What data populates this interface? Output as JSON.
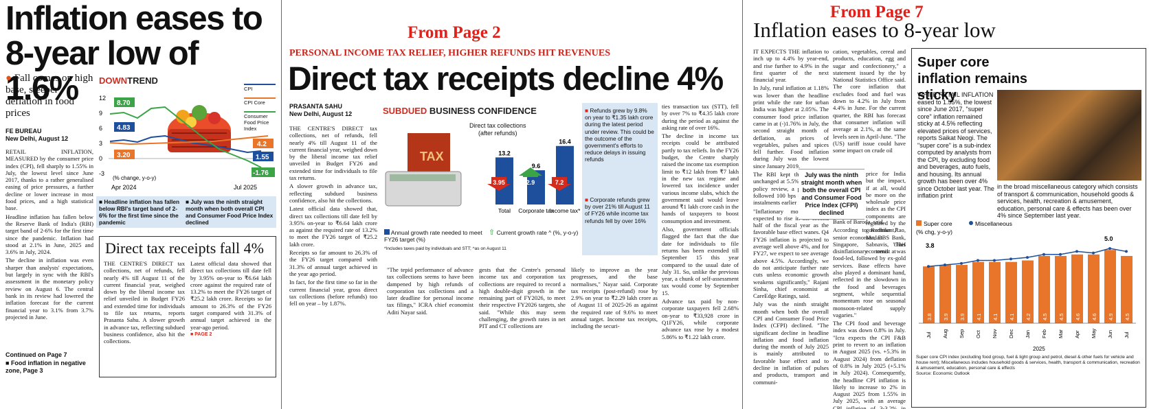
{
  "page1": {
    "headline": "Inflation eases to 8-year low of 1.6%",
    "subhead": "Fall comes on high base, steeper deflation in food prices",
    "byline_org": "FE BUREAU",
    "dateline": "New Delhi, August 12",
    "body": [
      "RETAIL INFLATION, MEASURED by the consumer price index (CPI), fell sharply to 1.55% in July, the lowest level since June 2017, thanks to a rather generalised easing of price pressures, a further decline or lower increase in most food prices, and a high statistical base.",
      "Headline inflation has fallen below the Reserve Bank of India's (RBI) target band of 2-6% for the first time since the pandemic. Inflation had stood at 2.1% in June, 2025 and 3.6% in July, 2024.",
      "The decline in inflation was even sharper than analysts' expectations, but largely in sync with the RBI's assessment in the monetary policy review on August 6. The central bank in its review had lowered the inflation forecast for the current financial year to 3.1% from 3.7% projected in June."
    ],
    "continued": "Continued on Page 7",
    "related": "Food inflation in negative zone, Page 3",
    "chart": {
      "title_a": "DOWN",
      "title_b": "TREND",
      "legend": [
        "CPI",
        "CPI Core",
        "Consumer Food Price Index"
      ],
      "y_ticks": [
        "12",
        "9",
        "6",
        "3",
        "0",
        "-3"
      ],
      "note": "(% change, y-o-y)",
      "x_start": "Apr 2024",
      "x_end": "Jul 2025",
      "labels_left": [
        "8.70",
        "4.83",
        "3.20"
      ],
      "labels_right": [
        "4.2",
        "1.55",
        "-1.76"
      ]
    },
    "callouts": [
      "Headline inflation has fallen below RBI's target band of 2-6% for the first time since the pandemic",
      "July was the ninth straight month when both overall CPI and Consumer Food Price Index declined"
    ],
    "box": {
      "headline": "Direct tax receipts fall 4%",
      "col1": "THE CENTRE'S DIRECT tax collections, net of refunds, fell nearly 4% till August 11 of the current financial year, weighed down by the liberal income tax relief unveiled in Budget FY26 and extended time for individuals to file tax returns, reports Prasanta Sahu. A slower growth in advance tax, reflecting subdued business confidence, also hit the collections.",
      "col2": "Latest official data showed that direct tax collections till date fell by 3.95% on-year to ₹6.64 lakh crore against the required rate of 13.2% to meet the FY26 target of ₹25.2 lakh crore. Receipts so far amount to 26.3% of the FY26 target compared with 31.3% of annual target achieved in the year-ago period.",
      "page_ref": "PAGE 2"
    }
  },
  "page2": {
    "from_label": "From Page 2",
    "kicker": "PERSONAL INCOME TAX RELIEF, HIGHER REFUNDS HIT REVENUES",
    "headline": "Direct tax receipts decline 4%",
    "byline": "PRASANTA SAHU",
    "dateline": "New Delhi, August 12",
    "col1": [
      "THE CENTRE'S DIRECT tax collections, net of refunds, fell nearly 4% till August 11 of the current financial year, weighed down by the liberal income tax relief unveiled in Budget FY26 and extended time for individuals to file tax returns.",
      "A slower growth in advance tax, reflecting subdued business confidence, also hit the collections.",
      "Latest official data showed that, direct tax collections till date fell by 3.95% on-year to ₹6.64 lakh crore as against the required rate of 13.2% to meet the FY26 target of ₹25.2 lakh crore.",
      "Receipts so far amount to 26.3% of the FY26 target compared with 31.3% of annual target achieved in the year ago period.",
      "In fact, for the first time so far in the current financial year, gross direct tax collections (before refunds) too fell on year – by 1.87%."
    ],
    "chart": {
      "title_a": "SUBDUED",
      "title_b": "BUSINESS CONFIDENCE",
      "sub1": "Direct tax collections",
      "sub2": "(after refunds)",
      "legend1": "Annual growth rate needed to meet FY26 target (%)",
      "legend2": "Current growth rate ^ (%, y-o-y)",
      "footnote": "*Includes taxes paid by individuals and STT; ^as on August 11"
    },
    "side_bullets": [
      "Refunds grew by 9.8% on year to ₹1.35 lakh crore during the latest period under review. This could be the outcome of the government's efforts to reduce delays in issuing refunds",
      "Corporate refunds grew by over 21% till August 11 of FY26 while income tax refunds fell by over 16%"
    ],
    "lower_col1": "\"The tepid performance of advance tax collections seems to have been dampened by high refunds of corporation tax collections and a later deadline for personal income tax filings,\" ICRA chief economist Aditi Nayar said.",
    "lower_col2": "gests that the Centre's personal income tax and corporation tax collections are required to record a high double-digit growth in the remaining part of FY2026, to meet their respective FY2026 targets, she said. \"While this may seem challenging, the growth rates in net PIT and CT collections are",
    "lower_col3": "likely to improve as the year progresses, and the base normalises,\" Nayar said. Corporate tax receipts (post-refund) rose by 2.9% on year to ₹2.29 lakh crore as of August 11 of 2025-26 as against the required rate of 9.6% to meet annual target. Income tax receipts, including the securi-",
    "right_col": [
      "ties transaction tax (STT), fell by over 7% to ₹4.35 lakh crore during the period as against the asking rate of over 16%.",
      "The decline in income tax receipts could be attributed partly to tax reliefs. In the FY26 budget, the Centre sharply raised the income tax exemption limit to ₹12 lakh from ₹7 lakh in the new tax regime and lowered tax incidence under various income slabs, which the government said would leave around ₹1 lakh crore cash in the hands of taxpayers to boost consumption and investment.",
      "Also, government officials flagged the fact that the due date for individuals to file returns has been extended till September 15 this year compared to the usual date of July 31. So, unlike the previous year, a chunk of self-assessment tax would come by September 15.",
      "Advance tax paid by non-corporate taxpayers fell 2.68% on-year to ₹33,928 crore in Q1FY26, while corporate advance tax rose by a modest 5.86% to ₹1.22 lakh crore."
    ]
  },
  "chart_data": {
    "type": "bar",
    "title": "SUBDUED BUSINESS CONFIDENCE",
    "subtitle": "Direct tax collections (after refunds)",
    "categories": [
      "Total",
      "Corporate tax",
      "Income tax*"
    ],
    "series": [
      {
        "name": "Annual growth rate needed to meet FY26 target (%)",
        "values": [
          13.2,
          9.6,
          16.4
        ]
      },
      {
        "name": "Current growth rate ^ (%, y-o-y)",
        "values": [
          -3.95,
          2.9,
          -7.2
        ]
      }
    ],
    "value_labels_current": [
      "3.95",
      "2.9",
      "7.2"
    ],
    "colors": {
      "needed": "#1d4f9c",
      "down": "#d42b1f",
      "up": "#3aa447"
    }
  },
  "page7": {
    "from_label": "From Page 7",
    "headline": "Inflation eases to 8-year low",
    "col1": [
      "IT EXPECTS THE inflation to inch up to 4.4% by year-end, and rise further to 4.9% in the first quarter of the next financial year.",
      "In July, rural inflation at 1.18% was lower than the headline print while the rate for urban India was higher at 2.05%. The consumer food price inflation came in at (-)1.76% in July, the second straight month of deflation, as prices of vegetables, pulses and spices fell further. Food inflation during July was the lowest since January 2019.",
      "The RBI kept the repo rate unchanged at 5.5% in the latest policy review, a pause which followed 100 bps cuts in three instalments earlier in the year.",
      "\"Inflationary momentum is expected to rise in the second half of the fiscal year as the favorable base effect wanes. Q4 FY26 inflation is projected to average well above 4%, and for FY27, we expect to see average above 4.5%. Accordingly, we do not anticipate further rate cuts unless economic growth weakens significantly,\" Rajani Sinha, chief economist at CareEdge Ratings, said.",
      "July was the ninth straight month when both the overall CPI and Consumer Food Price Index (CFPI) declined. \"The significant decline in headline inflation and food inflation during the month of July 2025 is mainly attributed to favorable base effect and to decline in inflation of pulses and products, transport and communi-"
    ],
    "pull_quote": "July was the ninth straight month when both the overall CPI and Consumer Food Price Index (CFPI) declined",
    "col2_top": "cation, vegetables, cereal and products, education, egg and sugar and confectionery,\" a statement issued by the by National Statistics Office said. The core inflation that excludes food and fuel was down to 4.2% in July from 4.4% in June. For the current quarter, the RBI has forecast that consumer inflation will average at 2.1%, at the same levels seen in April-June. \"The (US) tariff issue could have some impact on crude oil",
    "col2_narrow": "price for India but the impact, if at all, would be more on the wholesale price index as the CPI components are regulated by the government,\" Madan Sabnavis, chief economist at",
    "col2_rest": [
      "Bank of Baroda, said.",
      "According to Radhika Rao, senior economist, DBS Bank, Singapore, \"This disinflationary trend was food-led, followed by ex-gold services. Base effects have also played a dominant hand, reflected in the slowdown in the food and beverages segment, while sequential momentum rose on seasonal monsoon-related supply vagaries.\"",
      "The CPI food and beverage index was down 0.8% in July. \"Icra expects the CPI F&B print to revert to an inflation in August 2025 (vs. +5.3% in August 2024) from deflation of 0.8% in July 2025 (+5.1% in July 2024). Consequently, the headline CPI inflation is likely to increase to 2% in August 2025 from 1.55% in July 2025, with an average CPI inflation of 3-3.2% in FY2026,\" Aditi Nayar, chief economist at Icra, said."
    ],
    "box": {
      "headline": "Super core inflation remains sticky",
      "text": "WHILE RETAIL INFLATION eased to 1.55%, the lowest since June 2017, \"super core\" inflation remained sticky at 4.5% reflecting elevated prices of services, reports Saikat Neogi. The \"super core\" is a sub-index computed by analysts from the CPI, by excluding food and beverages, auto fuels, and housing. Its annual growth has been over 4% since October last year. The inflation print",
      "text2": "in the broad miscellaneous category which consists of transport & communication, household goods & services, health, recreation & amusement, education, personal care & effects has been over 4% since September last year.",
      "legend": [
        "Super core",
        "Miscellaneous"
      ],
      "unit": "(% chg, y-o-y)",
      "first_label": "3.8",
      "peak_label": "5.0",
      "year": "2025",
      "footnote": "Super core CPI index (excluding food group, fuel & light group and petrol, diesel & other fuels for vehicle and house rent); Miscellaneous includes household goods & services, health, transport & communication, recreation & amusement, education, personal care & effects",
      "source": "Source: Economic Outlook"
    }
  },
  "supercore": {
    "months": [
      "Jul",
      "Aug",
      "Sep",
      "Oct",
      "Nov",
      "Dec",
      "Jan",
      "Feb",
      "Mar",
      "Apr",
      "May",
      "Jun",
      "Jul"
    ],
    "values": [
      "3.8",
      "3.9",
      "3.9",
      "4.1",
      "4.1",
      "4.1",
      "4.2",
      "4.5",
      "4.5",
      "4.6",
      "4.6",
      "4.9",
      "4.5"
    ],
    "misc": [
      3.8,
      3.9,
      4.0,
      4.2,
      4.2,
      4.3,
      4.4,
      4.6,
      4.6,
      4.8,
      4.7,
      5.0,
      4.8
    ],
    "ylim": [
      0,
      5.6
    ]
  }
}
